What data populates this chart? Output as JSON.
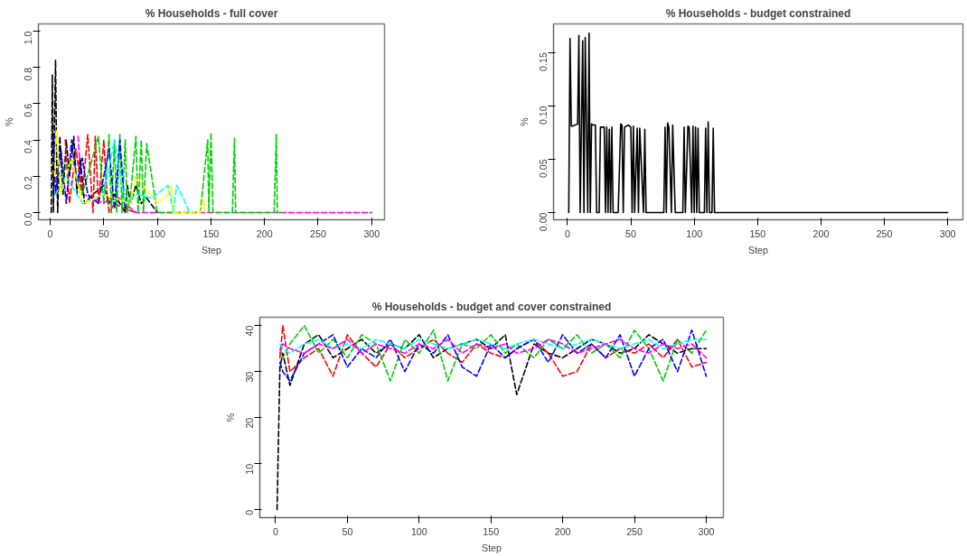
{
  "chart_data": [
    {
      "type": "line",
      "title": "% Households - full cover",
      "xlabel": "Step",
      "ylabel": "%",
      "xlim": [
        -11,
        312
      ],
      "ylim": [
        -0.04,
        1.04
      ],
      "xticks": [
        0,
        50,
        100,
        150,
        200,
        250,
        300
      ],
      "yticks": [
        {
          "value": 0,
          "label": "0.0"
        },
        0.2,
        0.4,
        0.6,
        0.8,
        {
          "value": 1,
          "label": "1.0"
        }
      ],
      "grid": false,
      "line_style": "dashed",
      "series": [
        {
          "color": "#ff00ff",
          "x": [
            26,
            30,
            40,
            50,
            60,
            80,
            300
          ],
          "values": [
            0.42,
            0.1,
            0.08,
            0.05,
            0.1,
            0,
            0
          ]
        },
        {
          "color": "#000000",
          "x": [
            1,
            2,
            3,
            4,
            5,
            6,
            7,
            9,
            12,
            15,
            18,
            22,
            25,
            28,
            32,
            40,
            50,
            55,
            60,
            70,
            72,
            75,
            80,
            85,
            90,
            100
          ],
          "values": [
            0,
            0.76,
            0,
            0.5,
            0.84,
            0.3,
            0,
            0.42,
            0.1,
            0.4,
            0.2,
            0.42,
            0.1,
            0.3,
            0.05,
            0.1,
            0.15,
            0.05,
            0.1,
            0,
            0.15,
            0.05,
            0.15,
            0.05,
            0.08,
            0
          ]
        },
        {
          "color": "#ff0000",
          "x": [
            14,
            18,
            24,
            30,
            35,
            40,
            42,
            45,
            50,
            53,
            55,
            60,
            70,
            80
          ],
          "values": [
            0.4,
            0.05,
            0.35,
            0.1,
            0.43,
            0,
            0.42,
            0.05,
            0.4,
            0.1,
            0,
            0.05,
            0.02,
            0
          ]
        },
        {
          "color": "#00cd00",
          "x": [
            10,
            20,
            30,
            45,
            50,
            55,
            57,
            60,
            62,
            65,
            67,
            70,
            72,
            75,
            80,
            82,
            85,
            87,
            90,
            100,
            140,
            147,
            148,
            150,
            152,
            153,
            170,
            172,
            173,
            209,
            211,
            212,
            215
          ],
          "values": [
            0.2,
            0.3,
            0.1,
            0.42,
            0.05,
            0.43,
            0,
            0.4,
            0,
            0.43,
            0,
            0.4,
            0,
            0.1,
            0.42,
            0,
            0.4,
            0,
            0.38,
            0,
            0,
            0.4,
            0,
            0.44,
            0,
            0,
            0,
            0.41,
            0,
            0,
            0.43,
            0,
            0
          ]
        },
        {
          "color": "#0000ff",
          "x": [
            3,
            5,
            10,
            15,
            20,
            25,
            30,
            35,
            45,
            55,
            60,
            65,
            70
          ],
          "values": [
            0.42,
            0.1,
            0.35,
            0.05,
            0.4,
            0.15,
            0.3,
            0.1,
            0.05,
            0.35,
            0.02,
            0.4,
            0
          ]
        },
        {
          "color": "#00ffff",
          "x": [
            5,
            15,
            30,
            50,
            60,
            70,
            80,
            95,
            110,
            115,
            118,
            125,
            130
          ],
          "values": [
            0.1,
            0.2,
            0.05,
            0.1,
            0.4,
            0.05,
            0.1,
            0.08,
            0.15,
            0,
            0.15,
            0.07,
            0
          ]
        },
        {
          "color": "#ffff00",
          "x": [
            4,
            6,
            10,
            20,
            30,
            50,
            75,
            80,
            100,
            110,
            113,
            115,
            140,
            143,
            145
          ],
          "values": [
            0.2,
            0.45,
            0.1,
            0.3,
            0.05,
            0.1,
            0.05,
            0.2,
            0.05,
            0.1,
            0.15,
            0,
            0,
            0.07,
            0
          ]
        }
      ]
    },
    {
      "type": "line",
      "title": "% Households - budget constrained",
      "xlabel": "Step",
      "ylabel": "%",
      "xlim": [
        -11,
        312
      ],
      "ylim": [
        -0.0068,
        0.1768
      ],
      "xticks": [
        0,
        50,
        100,
        150,
        200,
        250,
        300
      ],
      "yticks": [
        {
          "value": 0,
          "label": "0.00"
        },
        0.05,
        {
          "value": 0.1,
          "label": "0.10"
        },
        0.15
      ],
      "grid": false,
      "line_style": "solid",
      "series": [
        {
          "color": "#000000",
          "x": [
            1,
            2,
            3,
            4,
            8,
            9,
            10,
            11,
            12,
            13,
            14,
            15,
            16,
            17,
            18,
            19,
            20,
            22,
            23,
            25,
            26,
            29,
            30,
            31,
            32,
            33,
            34,
            35,
            36,
            37,
            40,
            42,
            43,
            44,
            45,
            48,
            50,
            51,
            52,
            53,
            55,
            56,
            57,
            60,
            61,
            62,
            76,
            77,
            78,
            79,
            80,
            82,
            83,
            85,
            91,
            92,
            93,
            95,
            96,
            98,
            99,
            100,
            101,
            102,
            103,
            104,
            108,
            109,
            110,
            111,
            112,
            114,
            115,
            116,
            300
          ],
          "values": [
            0,
            0.163,
            0.081,
            0.081,
            0.083,
            0.166,
            0,
            0.082,
            0.161,
            0,
            0.164,
            0.082,
            0,
            0.168,
            0,
            0.083,
            0.082,
            0.082,
            0,
            0,
            0.08,
            0.08,
            0,
            0.08,
            0,
            0.078,
            0,
            0.08,
            0,
            0,
            0,
            0.083,
            0.082,
            0,
            0.08,
            0.082,
            0.08,
            0,
            0.081,
            0,
            0.079,
            0,
            0.079,
            0,
            0.078,
            0,
            0,
            0.08,
            0,
            0.084,
            0.08,
            0,
            0.082,
            0,
            0,
            0.08,
            0,
            0.081,
            0.08,
            0,
            0.081,
            0,
            0.08,
            0,
            0.079,
            0,
            0,
            0.079,
            0,
            0.085,
            0,
            0,
            0.079,
            0,
            0
          ]
        }
      ]
    },
    {
      "type": "line",
      "title": "% Households - budget and cover constrained",
      "xlabel": "Step",
      "ylabel": "%",
      "xlim": [
        -11,
        312
      ],
      "ylim": [
        -1.7,
        41.8
      ],
      "xticks": [
        0,
        50,
        100,
        150,
        200,
        250,
        300
      ],
      "yticks": [
        0,
        10,
        20,
        30,
        40
      ],
      "grid": false,
      "line_style": "dashed",
      "x": [
        3,
        5,
        10,
        20,
        30,
        40,
        50,
        60,
        70,
        80,
        90,
        100,
        110,
        120,
        130,
        140,
        150,
        160,
        168,
        180,
        190,
        200,
        210,
        220,
        230,
        240,
        250,
        260,
        270,
        280,
        290,
        300
      ],
      "series": [
        {
          "color": "#000000",
          "x": [
            1,
            3,
            5,
            10,
            20,
            30,
            40,
            50,
            60,
            70,
            80,
            90,
            100,
            110,
            120,
            130,
            140,
            150,
            160,
            168,
            180,
            190,
            200,
            210,
            220,
            230,
            240,
            250,
            260,
            270,
            280,
            290,
            300
          ],
          "values": [
            0,
            31,
            34,
            27,
            36,
            38,
            33,
            35,
            37,
            34,
            36,
            35,
            38,
            33,
            35,
            36,
            37,
            35,
            38,
            25,
            36,
            34,
            33,
            35,
            37,
            36,
            34,
            35,
            38,
            36,
            34,
            35,
            35
          ]
        },
        {
          "color": "#ff0000",
          "values": [
            33,
            40,
            30,
            33,
            35,
            29,
            38,
            34,
            31,
            36,
            33,
            35,
            37,
            34,
            32,
            36,
            34,
            33,
            35,
            37,
            34,
            29,
            30,
            36,
            33,
            35,
            34,
            36,
            33,
            37,
            31,
            32
          ]
        },
        {
          "color": "#00cd00",
          "values": [
            35,
            33,
            36,
            40,
            34,
            37,
            33,
            38,
            36,
            28,
            37,
            34,
            39,
            28,
            36,
            35,
            38,
            34,
            36,
            33,
            37,
            35,
            38,
            34,
            36,
            33,
            39,
            35,
            28,
            37,
            34,
            39
          ]
        },
        {
          "color": "#0000ff",
          "values": [
            32,
            30,
            28,
            34,
            36,
            38,
            31,
            35,
            33,
            37,
            30,
            36,
            34,
            38,
            31,
            29,
            36,
            33,
            35,
            37,
            32,
            38,
            34,
            36,
            33,
            38,
            29,
            35,
            37,
            30,
            39,
            29
          ]
        },
        {
          "color": "#00ffff",
          "values": [
            36,
            35,
            34,
            36,
            37,
            35,
            36,
            35,
            37,
            36,
            35,
            37,
            36,
            35,
            36,
            37,
            36,
            35,
            36,
            37,
            36,
            35,
            36,
            37,
            36,
            35,
            36,
            37,
            35,
            36,
            37,
            37
          ]
        },
        {
          "color": "#ff00ff",
          "values": [
            34,
            36,
            35,
            34,
            36,
            35,
            37,
            34,
            36,
            35,
            34,
            36,
            35,
            37,
            34,
            36,
            35,
            36,
            34,
            35,
            37,
            36,
            34,
            35,
            36,
            37,
            35,
            34,
            36,
            35,
            36,
            33
          ]
        }
      ]
    }
  ]
}
